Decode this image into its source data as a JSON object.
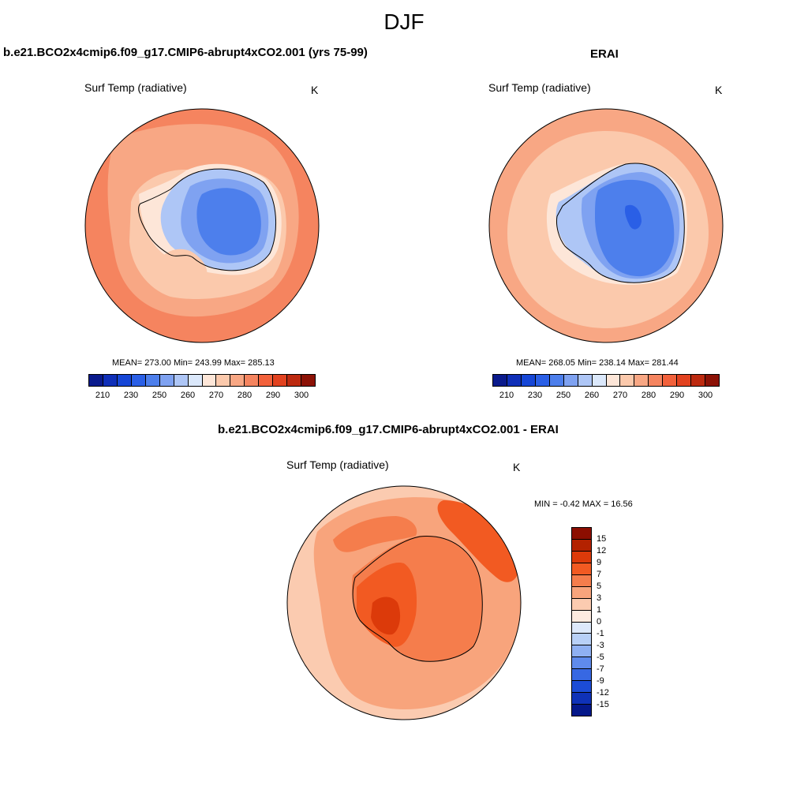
{
  "figure": {
    "title": "DJF",
    "panels": [
      {
        "title": "b.e21.BCO2x4cmip6.f09_g17.CMIP6-abrupt4xCO2.001 (yrs 75-99)",
        "variable": "Surf Temp (radiative)",
        "units": "K",
        "stats": "MEAN= 273.00  Min= 243.99  Max= 285.13"
      },
      {
        "title": "ERAI",
        "variable": "Surf Temp (radiative)",
        "units": "K",
        "stats": "MEAN= 268.05  Min= 238.14  Max= 281.44"
      },
      {
        "title": "b.e21.BCO2x4cmip6.f09_g17.CMIP6-abrupt4xCO2.001 - ERAI",
        "variable": "Surf Temp (radiative)",
        "units": "K",
        "stats": "MIN =  -0.42 MAX =  16.56"
      }
    ],
    "colorbar_abs": {
      "colors": [
        "#0a1a8c",
        "#0f2fb8",
        "#1646d6",
        "#2a5fe6",
        "#4d7fec",
        "#7fa2f1",
        "#aec6f6",
        "#dbe8fb",
        "#fde6d8",
        "#fbc9ac",
        "#f8a784",
        "#f5845f",
        "#f2613b",
        "#e2421f",
        "#bd2a10",
        "#8c1206"
      ],
      "ticks": [
        "210",
        "230",
        "250",
        "260",
        "270",
        "280",
        "290",
        "300"
      ]
    },
    "colorbar_diff": {
      "colors": [
        "#8c0e00",
        "#b32200",
        "#dc3a0a",
        "#f25a22",
        "#f57d4c",
        "#f8a47c",
        "#fbcbb0",
        "#fdebe0",
        "#dde9fb",
        "#b8d0f7",
        "#8fb0f2",
        "#5f8bec",
        "#3768e3",
        "#1c4cd6",
        "#0f32b8",
        "#05188a"
      ],
      "ticks": [
        "15",
        "12",
        "9",
        "7",
        "5",
        "3",
        "1",
        "0",
        "-1",
        "-3",
        "-5",
        "-7",
        "-9",
        "-12",
        "-15"
      ]
    },
    "map_colors": {
      "ocean_far": "#f5845f",
      "ocean_mid": "#f8a784",
      "ocean_near": "#fbc9ac",
      "coast": "#fde6d8",
      "ice_edge": "#aec6f6",
      "ice_mid": "#7fa2f1",
      "ice_core": "#4d7fec",
      "ice_deep": "#2a5fe6",
      "diff_ocean_light": "#fbcbb0",
      "diff_ocean_mid": "#f8a47c",
      "diff_ocean_strong": "#f57d4c",
      "diff_ocean_hot": "#f25a22",
      "diff_land": "#f57d4c",
      "diff_land_hot": "#f25a22",
      "diff_land_core": "#dc3a0a"
    }
  }
}
